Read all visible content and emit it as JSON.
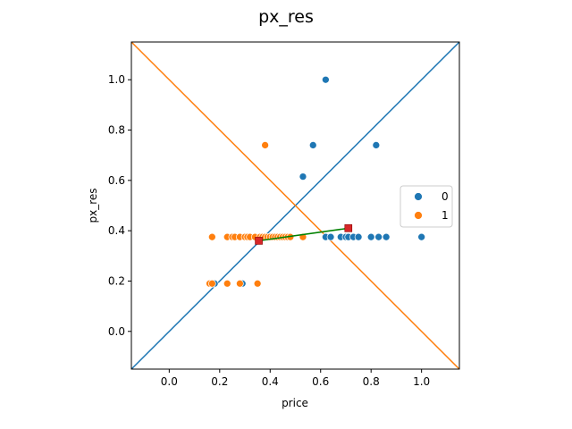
{
  "chart_data": {
    "type": "scatter",
    "title": "px_res",
    "xlabel": "price",
    "ylabel": "px_res",
    "xlim": [
      -0.15,
      1.15
    ],
    "ylim": [
      -0.15,
      1.15
    ],
    "xticks": [
      0.0,
      0.2,
      0.4,
      0.6,
      0.8,
      1.0
    ],
    "yticks": [
      0.0,
      0.2,
      0.4,
      0.6,
      0.8,
      1.0
    ],
    "xtick_labels": [
      "0.0",
      "0.2",
      "0.4",
      "0.6",
      "0.8",
      "1.0"
    ],
    "ytick_labels": [
      "0.0",
      "0.2",
      "0.4",
      "0.6",
      "0.8",
      "1.0"
    ],
    "grid": false,
    "legend": {
      "placement": "center-right",
      "entries": [
        "0",
        "1"
      ]
    },
    "series": [
      {
        "name": "0",
        "color": "#1f77b4",
        "points": [
          [
            0.62,
            1.0
          ],
          [
            0.57,
            0.74
          ],
          [
            0.82,
            0.74
          ],
          [
            0.53,
            0.615
          ],
          [
            0.62,
            0.375
          ],
          [
            0.64,
            0.375
          ],
          [
            0.68,
            0.375
          ],
          [
            0.7,
            0.375
          ],
          [
            0.71,
            0.375
          ],
          [
            0.73,
            0.375
          ],
          [
            0.75,
            0.375
          ],
          [
            0.8,
            0.375
          ],
          [
            0.83,
            0.375
          ],
          [
            0.86,
            0.375
          ],
          [
            1.0,
            0.375
          ],
          [
            0.18,
            0.19
          ],
          [
            0.29,
            0.19
          ]
        ]
      },
      {
        "name": "1",
        "color": "#ff7f0e",
        "points": [
          [
            0.38,
            0.74
          ],
          [
            0.17,
            0.375
          ],
          [
            0.23,
            0.375
          ],
          [
            0.25,
            0.375
          ],
          [
            0.26,
            0.375
          ],
          [
            0.28,
            0.375
          ],
          [
            0.3,
            0.375
          ],
          [
            0.31,
            0.375
          ],
          [
            0.32,
            0.375
          ],
          [
            0.34,
            0.375
          ],
          [
            0.36,
            0.375
          ],
          [
            0.37,
            0.375
          ],
          [
            0.38,
            0.375
          ],
          [
            0.39,
            0.375
          ],
          [
            0.4,
            0.375
          ],
          [
            0.41,
            0.375
          ],
          [
            0.42,
            0.375
          ],
          [
            0.43,
            0.375
          ],
          [
            0.44,
            0.375
          ],
          [
            0.45,
            0.375
          ],
          [
            0.46,
            0.375
          ],
          [
            0.47,
            0.375
          ],
          [
            0.48,
            0.375
          ],
          [
            0.53,
            0.375
          ],
          [
            0.16,
            0.19
          ],
          [
            0.17,
            0.19
          ],
          [
            0.23,
            0.19
          ],
          [
            0.28,
            0.19
          ],
          [
            0.35,
            0.19
          ]
        ]
      }
    ],
    "reference_lines": [
      {
        "name": "identity-line",
        "color": "#1f77b4",
        "from": [
          -0.15,
          -0.15
        ],
        "to": [
          1.15,
          1.15
        ]
      },
      {
        "name": "anti-diagonal-line",
        "color": "#ff7f0e",
        "from": [
          -0.15,
          1.15
        ],
        "to": [
          1.15,
          -0.15
        ]
      }
    ],
    "centroid_segment": {
      "color": "#008000",
      "marker_color": "#d62728",
      "from": [
        0.355,
        0.36
      ],
      "to": [
        0.71,
        0.41
      ]
    }
  }
}
